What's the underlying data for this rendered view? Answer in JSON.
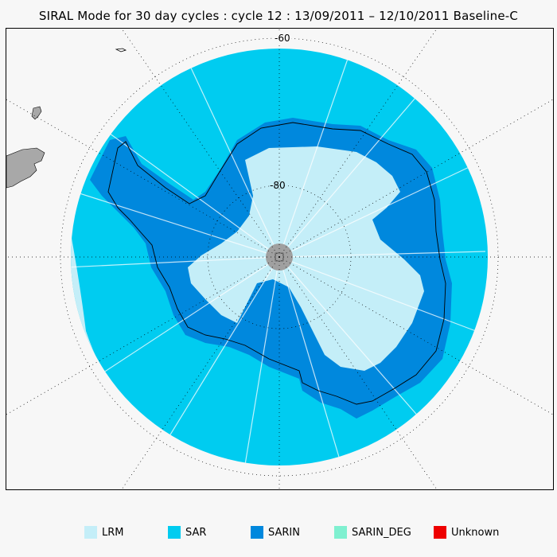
{
  "title": "SIRAL Mode for 30 day cycles : cycle 12 : 13/09/2011 – 12/10/2011 Baseline-C",
  "map": {
    "projection": "south-polar stereographic",
    "latitude_labels": [
      "-60",
      "-80"
    ],
    "colors": {
      "LRM": "#c4eef8",
      "SAR": "#00ccf0",
      "SARIN": "#0088dd",
      "SARIN_DEG": "#7ff0d0",
      "Unknown": "#ee0000",
      "land": "#a8a8a8",
      "pole_hole": "#a0a0a0",
      "background": "#f7f7f7"
    }
  },
  "legend": [
    {
      "label": "LRM",
      "color": "#c4eef8"
    },
    {
      "label": "SAR",
      "color": "#00ccf0"
    },
    {
      "label": "SARIN",
      "color": "#0088dd"
    },
    {
      "label": "SARIN_DEG",
      "color": "#7ff0d0"
    },
    {
      "label": "Unknown",
      "color": "#ee0000"
    }
  ]
}
